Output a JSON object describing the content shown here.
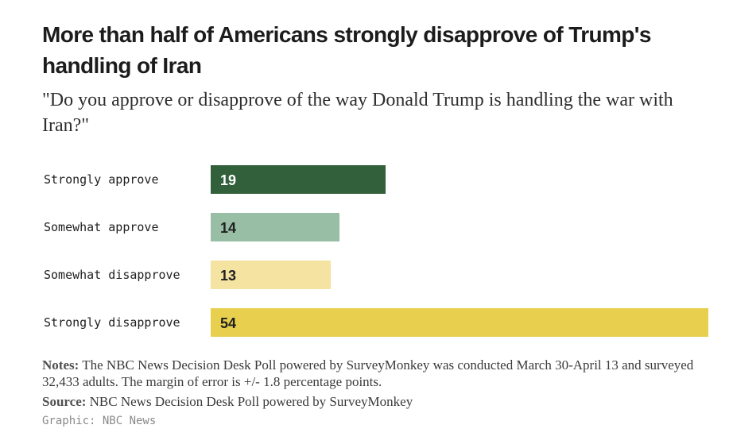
{
  "title": "More than half of Americans strongly disapprove of Trump's handling of Iran",
  "subtitle": "\"Do you approve or disapprove of the way Donald Trump is handling the war with Iran?\"",
  "chart_data": {
    "type": "bar",
    "orientation": "horizontal",
    "categories": [
      "Strongly approve",
      "Somewhat approve",
      "Somewhat disapprove",
      "Strongly disapprove"
    ],
    "values": [
      19,
      14,
      13,
      54
    ],
    "colors": [
      "#31603a",
      "#98bfa6",
      "#f4e3a1",
      "#e8d04e"
    ],
    "value_label_colors": [
      "#ffffff",
      "#1f1f1f",
      "#1f1f1f",
      "#1f1f1f"
    ],
    "xlim": [
      0,
      54
    ],
    "xlabel": "",
    "ylabel": "",
    "grid": false
  },
  "notes": {
    "label": "Notes:",
    "text": " The NBC News Decision Desk Poll powered by SurveyMonkey was conducted March 30-April 13 and surveyed 32,433 adults. The margin of error is +/- 1.8 percentage points."
  },
  "source": {
    "label": "Source:",
    "text": " NBC News Decision Desk Poll powered by SurveyMonkey"
  },
  "credit": "Graphic: NBC News"
}
